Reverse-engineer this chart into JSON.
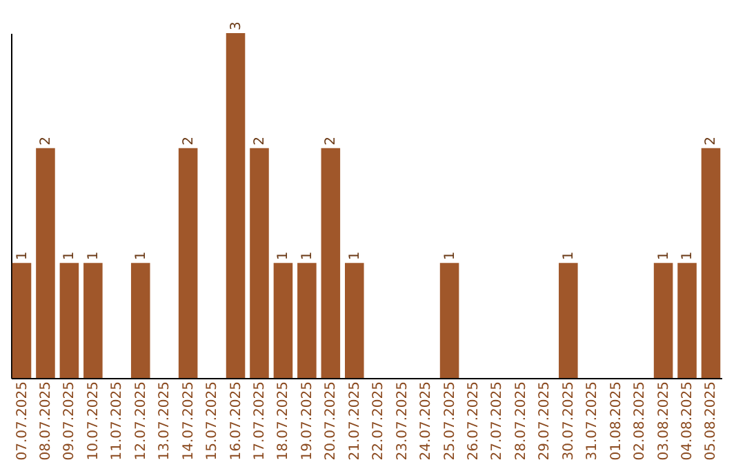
{
  "chart_data": {
    "type": "bar",
    "categories": [
      "07.07.2025",
      "08.07.2025",
      "09.07.2025",
      "10.07.2025",
      "11.07.2025",
      "12.07.2025",
      "13.07.2025",
      "14.07.2025",
      "15.07.2025",
      "16.07.2025",
      "17.07.2025",
      "18.07.2025",
      "19.07.2025",
      "20.07.2025",
      "21.07.2025",
      "22.07.2025",
      "23.07.2025",
      "24.07.2025",
      "25.07.2025",
      "26.07.2025",
      "27.07.2025",
      "28.07.2025",
      "29.07.2025",
      "30.07.2025",
      "31.07.2025",
      "01.08.2025",
      "02.08.2025",
      "03.08.2025",
      "04.08.2025",
      "05.08.2025"
    ],
    "values": [
      1,
      2,
      1,
      1,
      0,
      1,
      0,
      2,
      0,
      3,
      2,
      1,
      1,
      2,
      1,
      0,
      0,
      0,
      1,
      0,
      0,
      0,
      0,
      1,
      0,
      0,
      0,
      1,
      1,
      2
    ],
    "value_labels": [
      "1",
      "2",
      "1",
      "1",
      null,
      "1",
      null,
      "2",
      null,
      "3",
      "2",
      "1",
      "1",
      "2",
      "1",
      null,
      null,
      null,
      "1",
      null,
      null,
      null,
      null,
      "1",
      null,
      null,
      null,
      "1",
      "1",
      "2"
    ],
    "color": "#a0572a",
    "ylim": [
      0,
      3
    ],
    "tick_labels": "x",
    "grid": false
  }
}
